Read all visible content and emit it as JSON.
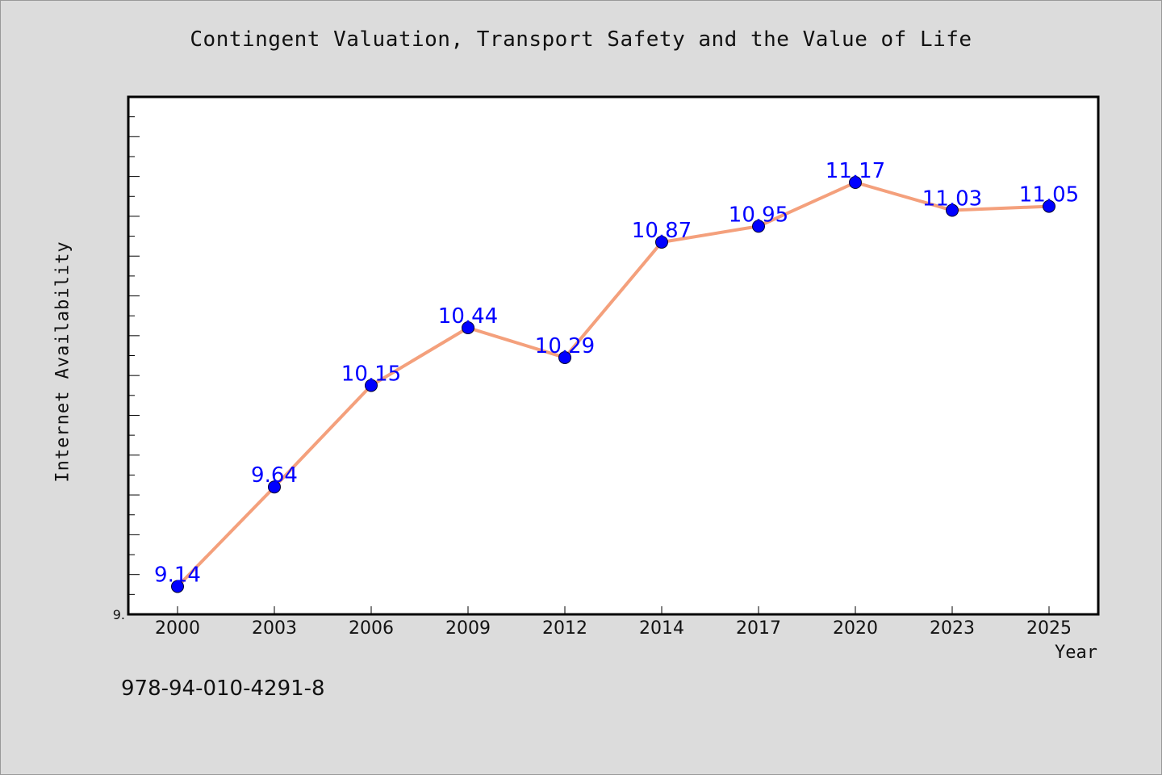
{
  "chart_data": {
    "type": "line",
    "title": "Contingent Valuation, Transport Safety and the Value of Life",
    "xlabel": "Year",
    "ylabel": "Internet Availability",
    "categories": [
      "2000",
      "2003",
      "2006",
      "2009",
      "2012",
      "2014",
      "2017",
      "2020",
      "2023",
      "2025"
    ],
    "series": [
      {
        "values": [
          9.14,
          9.64,
          10.15,
          10.44,
          10.29,
          10.87,
          10.95,
          11.17,
          11.03,
          11.05
        ],
        "color": "#f4a07c",
        "marker_color": "#0000ff",
        "label_color": "#0000ff"
      }
    ],
    "ylim": [
      9.0,
      11.6
    ],
    "y_tick_labels": [
      "9."
    ],
    "data_labels": [
      "9.14",
      "9.64",
      "10.15",
      "10.44",
      "10.29",
      "10.87",
      "10.95",
      "11.17",
      "11.03",
      "11.05"
    ],
    "grid": false,
    "legend": "none"
  },
  "footer": {
    "isbn": "978-94-010-4291-8"
  }
}
